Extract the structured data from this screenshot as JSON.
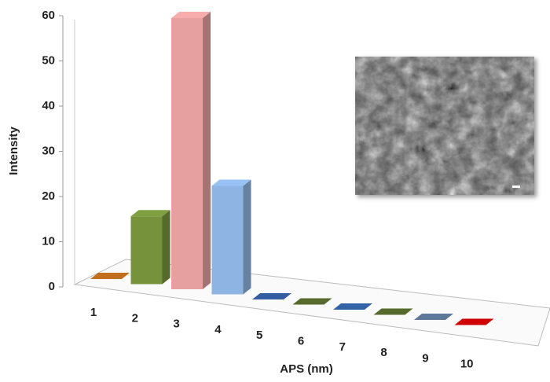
{
  "chart_data": {
    "type": "bar3d",
    "x_label": "APS (nm)",
    "y_label": "Intensity",
    "categories": [
      "1",
      "2",
      "3",
      "4",
      "5",
      "6",
      "7",
      "8",
      "9",
      "10"
    ],
    "values": [
      0,
      15,
      60,
      24,
      0,
      0,
      0,
      0,
      0,
      0
    ],
    "colors": [
      "#b5651d",
      "#76933c",
      "#e6a0a0",
      "#8db4e2",
      "#2f5597",
      "#4f6228",
      "#2e5c9a",
      "#4f6228",
      "#56708f",
      "#c00000"
    ],
    "ylim": [
      0,
      60
    ],
    "yticks": [
      0,
      10,
      20,
      30,
      40,
      50,
      60
    ]
  }
}
